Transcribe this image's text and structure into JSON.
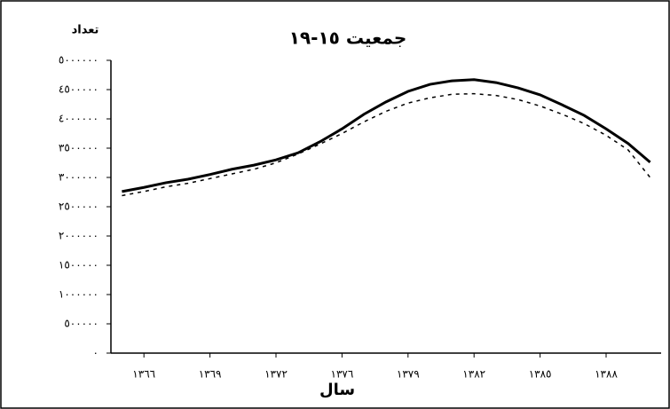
{
  "chart_data": {
    "type": "line",
    "title": "جمعیت ١٥-١٩",
    "y_label": "تعداد",
    "x_label": "سال",
    "categories": [
      null,
      "١٣٦٦",
      null,
      null,
      "١٣٦٩",
      null,
      null,
      "١٣٧٢",
      null,
      null,
      "١٣٧٦",
      null,
      null,
      "١٣٧٩",
      null,
      null,
      "١٣٨٢",
      null,
      null,
      "١٣٨٥",
      null,
      null,
      "١٣٨٨",
      null,
      null
    ],
    "series": [
      {
        "color": "#000000",
        "dash": false,
        "values": [
          2760000,
          2830000,
          2910000,
          2970000,
          3050000,
          3140000,
          3210000,
          3300000,
          3420000,
          3610000,
          3830000,
          4080000,
          4290000,
          4470000,
          4590000,
          4650000,
          4670000,
          4620000,
          4530000,
          4410000,
          4240000,
          4060000,
          3830000,
          3580000,
          3260000
        ]
      },
      {
        "color": "#000000",
        "dash": true,
        "values": [
          2690000,
          2760000,
          2840000,
          2900000,
          2980000,
          3060000,
          3140000,
          3250000,
          3400000,
          3570000,
          3750000,
          3950000,
          4130000,
          4270000,
          4360000,
          4420000,
          4430000,
          4400000,
          4330000,
          4220000,
          4080000,
          3920000,
          3720000,
          3470000,
          3000000
        ]
      }
    ],
    "ylim": [
      0,
      5000000
    ],
    "yticks": [
      {
        "value": 0,
        "label": "٠"
      },
      {
        "value": 500000,
        "label": "٥٠٠٠٠٠"
      },
      {
        "value": 1000000,
        "label": "١٠٠٠٠٠٠"
      },
      {
        "value": 1500000,
        "label": "١٥٠٠٠٠٠"
      },
      {
        "value": 2000000,
        "label": "٢٠٠٠٠٠٠"
      },
      {
        "value": 2500000,
        "label": "٢٥٠٠٠٠٠"
      },
      {
        "value": 3000000,
        "label": "٣٠٠٠٠٠٠"
      },
      {
        "value": 3500000,
        "label": "٣٥٠٠٠٠٠"
      },
      {
        "value": 4000000,
        "label": "٤٠٠٠٠٠٠"
      },
      {
        "value": 4500000,
        "label": "٤٥٠٠٠٠٠"
      },
      {
        "value": 5000000,
        "label": "٥٠٠٠٠٠٠"
      }
    ],
    "grid": false
  }
}
